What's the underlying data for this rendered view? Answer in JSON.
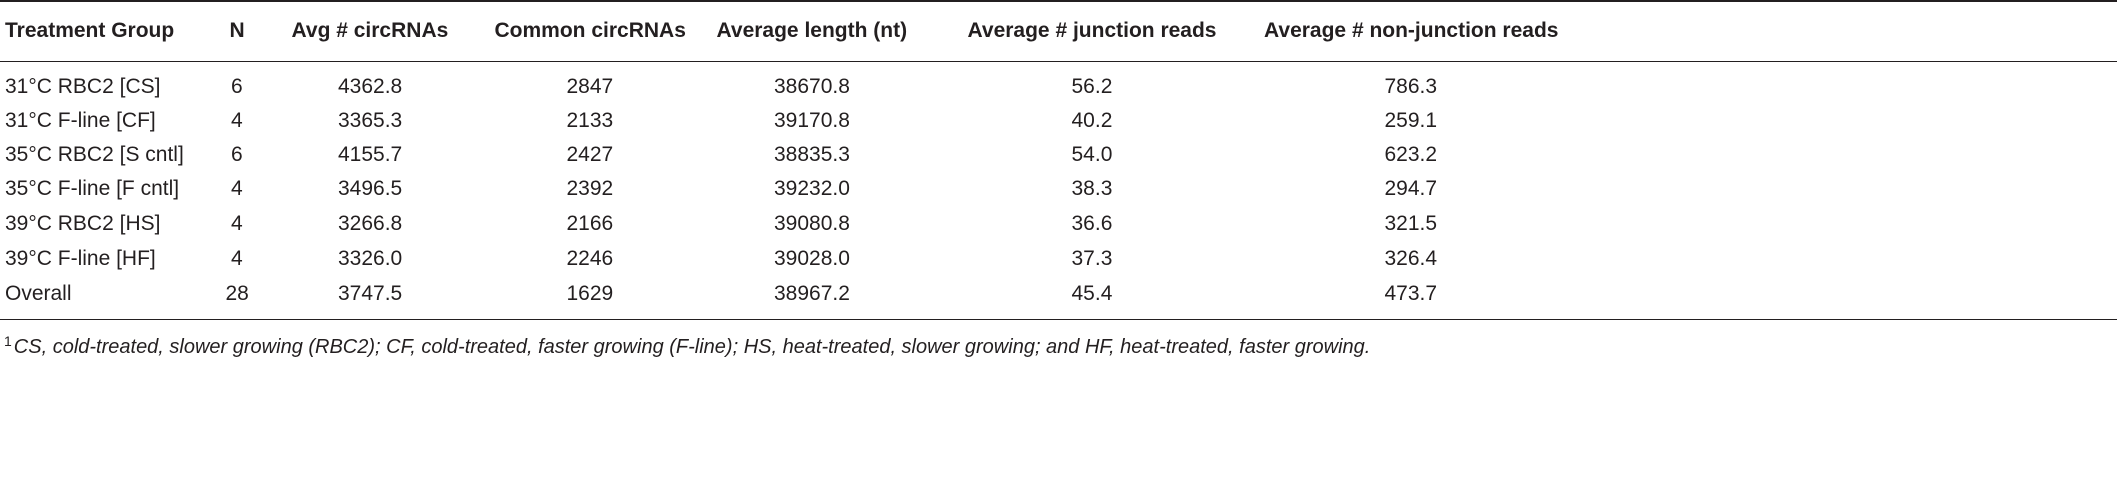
{
  "table": {
    "header": [
      "Treatment Group",
      "N",
      "Avg # circRNAs",
      "Common circRNAs",
      "Average length (nt)",
      "Average # junction reads",
      "Average # non-junction reads"
    ],
    "rows": [
      [
        "31°C RBC2 [CS]",
        "6",
        "4362.8",
        "2847",
        "38670.8",
        "56.2",
        "786.3"
      ],
      [
        "31°C F-line [CF]",
        "4",
        "3365.3",
        "2133",
        "39170.8",
        "40.2",
        "259.1"
      ],
      [
        "35°C RBC2 [S cntl]",
        "6",
        "4155.7",
        "2427",
        "38835.3",
        "54.0",
        "623.2"
      ],
      [
        "35°C F-line [F cntl]",
        "4",
        "3496.5",
        "2392",
        "39232.0",
        "38.3",
        "294.7"
      ],
      [
        "39°C RBC2 [HS]",
        "4",
        "3266.8",
        "2166",
        "39080.8",
        "36.6",
        "321.5"
      ],
      [
        "39°C F-line [HF]",
        "4",
        "3326.0",
        "2246",
        "39028.0",
        "37.3",
        "326.4"
      ],
      [
        "Overall",
        "28",
        "3747.5",
        "1629",
        "38967.2",
        "45.4",
        "473.7"
      ]
    ]
  },
  "footnote": {
    "marker": "1",
    "text": "CS, cold-treated, slower growing (RBC2); CF, cold-treated, faster growing (F-line); HS, heat-treated, slower growing; and HF, heat-treated, faster growing."
  }
}
